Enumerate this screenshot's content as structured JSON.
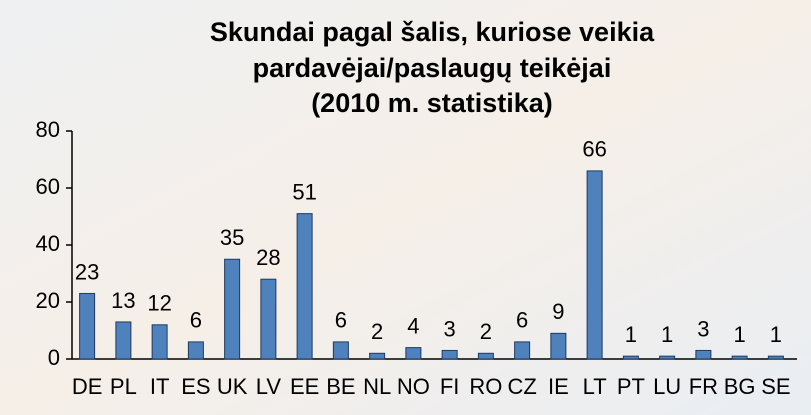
{
  "chart_data": {
    "type": "bar",
    "title": [
      "Skundai pagal šalis, kuriose veikia",
      "pardavėjai/paslaugų teikėjai",
      "(2010 m. statistika)"
    ],
    "categories": [
      "DE",
      "PL",
      "IT",
      "ES",
      "UK",
      "LV",
      "EE",
      "BE",
      "NL",
      "NO",
      "FI",
      "RO",
      "CZ",
      "IE",
      "LT",
      "PT",
      "LU",
      "FR",
      "BG",
      "SE"
    ],
    "values": [
      23,
      13,
      12,
      6,
      35,
      28,
      51,
      6,
      2,
      4,
      3,
      2,
      6,
      9,
      66,
      1,
      1,
      3,
      1,
      1
    ],
    "color": "#4f81bd",
    "ylim": [
      0,
      80
    ],
    "yticks": [
      0,
      20,
      40,
      60,
      80
    ],
    "grid": false
  }
}
